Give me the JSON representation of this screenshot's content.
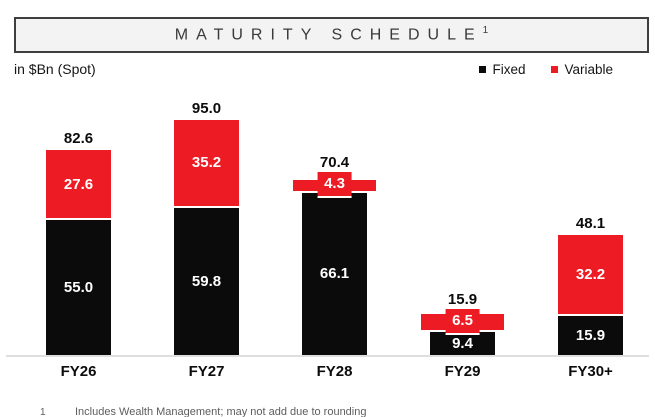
{
  "header": {
    "title": "MATURITY SCHEDULE",
    "superscript": "1"
  },
  "subtitle": "in $Bn (Spot)",
  "legend": [
    {
      "label": "Fixed",
      "color": "#0b0b0b"
    },
    {
      "label": "Variable",
      "color": "#ed1c24"
    }
  ],
  "chart_data": {
    "type": "bar",
    "stacked": true,
    "title": "MATURITY SCHEDULE",
    "unit_label": "in $Bn (Spot)",
    "categories": [
      "FY26",
      "FY27",
      "FY28",
      "FY29",
      "FY30+"
    ],
    "series": [
      {
        "name": "Fixed",
        "color": "#0b0b0b",
        "values": [
          55.0,
          59.8,
          66.1,
          9.4,
          15.9
        ]
      },
      {
        "name": "Variable",
        "color": "#ed1c24",
        "values": [
          27.6,
          35.2,
          4.3,
          6.5,
          32.2
        ]
      }
    ],
    "totals": [
      82.6,
      95.0,
      70.4,
      15.9,
      48.1
    ],
    "ylim": [
      0,
      100
    ],
    "grid": false,
    "legend_position": "top-right",
    "value_label_style": "white-bold-inside-segments",
    "total_label_style": "black-bold-above-bars"
  },
  "footnote": {
    "marker": "1",
    "text": "Includes Wealth Management; may not add due to rounding"
  }
}
